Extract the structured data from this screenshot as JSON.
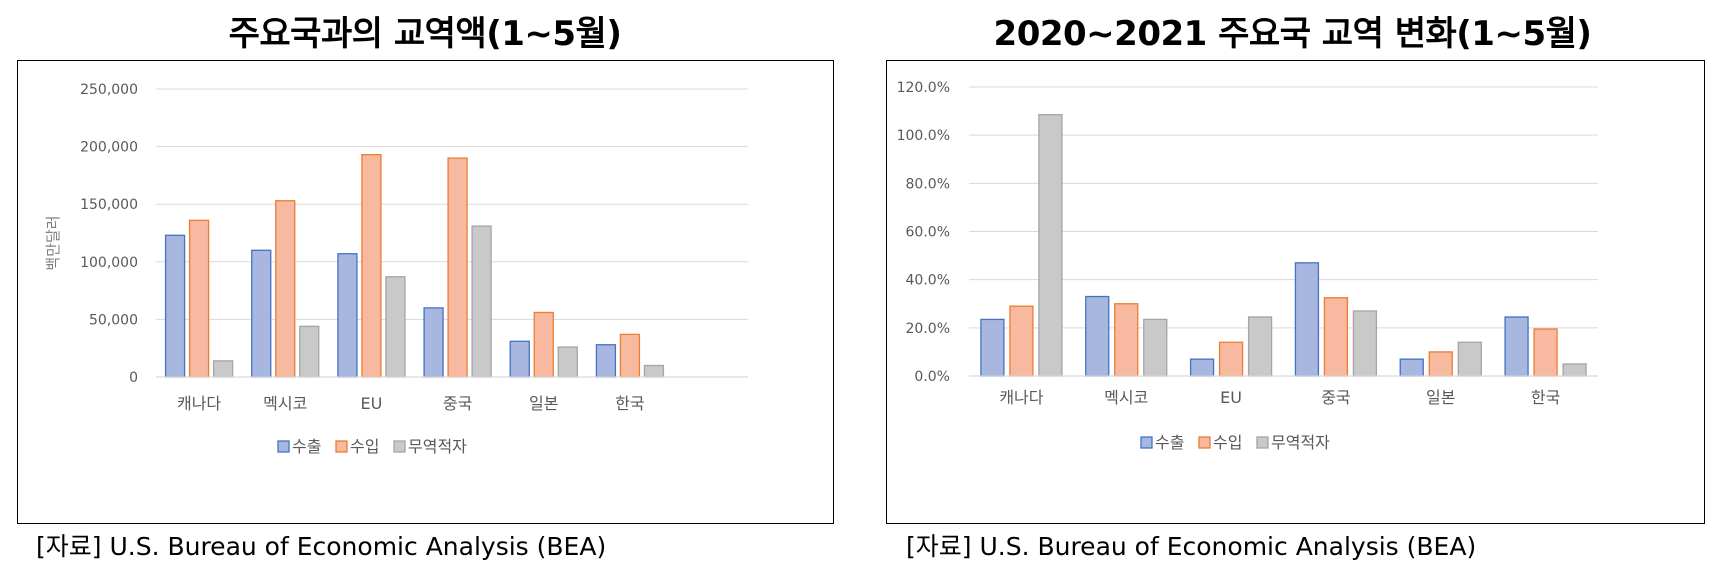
{
  "chart_data": [
    {
      "type": "bar",
      "title": "주요국과의 교역액(1~5월)",
      "ylabel": "백만달러",
      "categories": [
        "캐나다",
        "멕시코",
        "EU",
        "중국",
        "일본",
        "한국"
      ],
      "ylim": [
        0,
        250000
      ],
      "yticks": [
        "0",
        "50,000",
        "100,000",
        "150,000",
        "200,000",
        "250,000"
      ],
      "grid": true,
      "legend": "bottom",
      "series": [
        {
          "name": "수출",
          "values": [
            123000,
            110000,
            107000,
            60000,
            31000,
            28000
          ]
        },
        {
          "name": "수입",
          "values": [
            136000,
            153000,
            193000,
            190000,
            56000,
            37000
          ]
        },
        {
          "name": "무역적자",
          "values": [
            14000,
            44000,
            87000,
            131000,
            26000,
            10000
          ]
        }
      ]
    },
    {
      "type": "bar",
      "title": "2020~2021 주요국 교역 변화(1~5월)",
      "categories": [
        "캐나다",
        "멕시코",
        "EU",
        "중국",
        "일본",
        "한국"
      ],
      "ylim": [
        0,
        120
      ],
      "yticks": [
        "0.0%",
        "20.0%",
        "40.0%",
        "60.0%",
        "80.0%",
        "100.0%",
        "120.0%"
      ],
      "grid": true,
      "legend": "bottom",
      "series": [
        {
          "name": "수출",
          "values": [
            23.5,
            33.0,
            7.0,
            47.0,
            7.0,
            24.5
          ]
        },
        {
          "name": "수입",
          "values": [
            29.0,
            30.0,
            14.0,
            32.5,
            10.0,
            19.5
          ]
        },
        {
          "name": "무역적자",
          "values": [
            108.5,
            23.5,
            24.5,
            27.0,
            14.0,
            5.0
          ]
        }
      ]
    }
  ],
  "colors": {
    "export_fill": "#a7b7e0",
    "export_stroke": "#4472c4",
    "import_fill": "#f7b9a0",
    "import_stroke": "#ed7d31",
    "deficit_fill": "#c9c9c9",
    "deficit_stroke": "#a5a5a5",
    "grid": "#d9d9d9"
  },
  "source_left": "[자료] U.S. Bureau of Economic Analysis (BEA)",
  "source_right": "[자료] U.S. Bureau of Economic Analysis (BEA)"
}
